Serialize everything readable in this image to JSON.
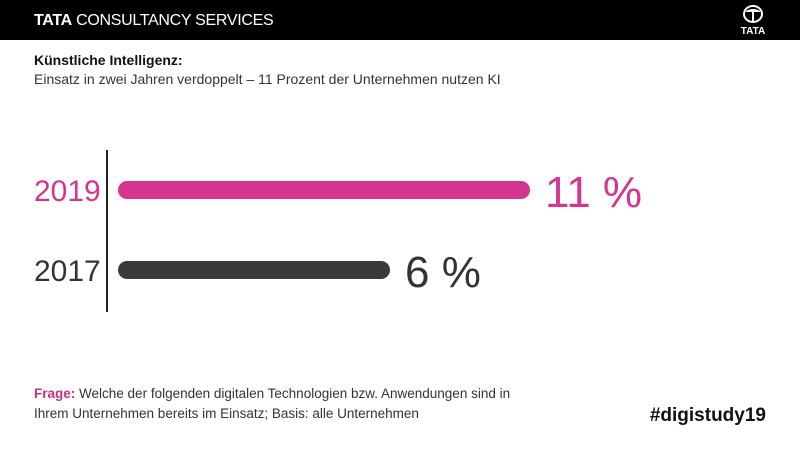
{
  "header": {
    "brand_bold": "TATA",
    "brand_rest": "CONSULTANCY SERVICES",
    "logo_text": "TATA"
  },
  "title": "Künstliche Intelligenz:",
  "subtitle": "Einsatz in zwei Jahren verdoppelt – 11 Prozent der Unternehmen nutzen KI",
  "chart_data": {
    "type": "bar",
    "orientation": "horizontal",
    "categories": [
      "2019",
      "2017"
    ],
    "values": [
      11,
      6
    ],
    "value_labels": [
      "11 %",
      "6 %"
    ],
    "colors": [
      "#d6358f",
      "#3a3a3a"
    ],
    "grid": false
  },
  "footer": {
    "question_label": "Frage:",
    "question_text": "Welche der folgenden digitalen Technologien bzw. Anwendungen sind in Ihrem Unternehmen bereits im Einsatz; Basis: alle Unternehmen",
    "hashtag": "#digistudy19"
  }
}
